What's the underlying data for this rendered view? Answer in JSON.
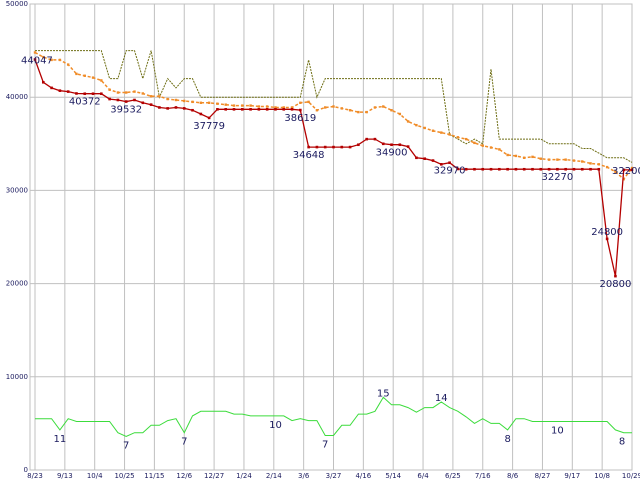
{
  "chart_data": {
    "type": "line",
    "title": "",
    "xlabel": "",
    "ylabel": "",
    "ylim": [
      0,
      50000
    ],
    "yticks": [
      0,
      10000,
      20000,
      30000,
      40000,
      50000
    ],
    "xticks": [
      "8/23",
      "9/13",
      "10/4",
      "10/25",
      "11/15",
      "12/6",
      "12/27",
      "1/24",
      "2/14",
      "3/6",
      "3/27",
      "4/16",
      "5/14",
      "6/4",
      "6/25",
      "7/16",
      "8/6",
      "8/27",
      "9/17",
      "10/8",
      "10/29"
    ],
    "grid": true,
    "legend": "none",
    "colors": {
      "price": "#b40000",
      "average": "#f08c28",
      "high": "#6e6e14",
      "count": "#3cdc3c",
      "grid": "#c0c0c0",
      "text": "#1a1a5e"
    },
    "series": [
      {
        "key": "high",
        "values": [
          45000,
          45000,
          45000,
          45000,
          45000,
          45000,
          45000,
          45000,
          45000,
          42000,
          42000,
          45000,
          45000,
          42000,
          45000,
          40000,
          42000,
          41000,
          42000,
          42000,
          40000,
          40000,
          40000,
          40000,
          40000,
          40000,
          40000,
          40000,
          40000,
          40000,
          40000,
          40000,
          40000,
          44000,
          40000,
          42000,
          42000,
          42000,
          42000,
          42000,
          42000,
          42000,
          42000,
          42000,
          42000,
          42000,
          42000,
          42000,
          42000,
          42000,
          36000,
          35500,
          35000,
          35500,
          35000,
          43000,
          35500,
          35500,
          35500,
          35500,
          35500,
          35500,
          35000,
          35000,
          35000,
          35000,
          34500,
          34500,
          34000,
          33500,
          33500,
          33500,
          33000
        ]
      },
      {
        "key": "average",
        "values": [
          44800,
          44300,
          44000,
          44000,
          43500,
          42500,
          42300,
          42100,
          41800,
          40800,
          40500,
          40500,
          40600,
          40400,
          40100,
          40100,
          39800,
          39700,
          39600,
          39500,
          39400,
          39400,
          39300,
          39200,
          39100,
          39100,
          39100,
          39000,
          39000,
          38900,
          38900,
          38900,
          39400,
          39500,
          38600,
          38900,
          39000,
          38800,
          38600,
          38400,
          38400,
          38900,
          39000,
          38600,
          38200,
          37400,
          37000,
          36700,
          36400,
          36200,
          36000,
          35700,
          35500,
          35100,
          34800,
          34600,
          34400,
          33800,
          33700,
          33500,
          33600,
          33400,
          33300,
          33300,
          33300,
          33200,
          33100,
          32900,
          32800,
          32500,
          32000,
          31200,
          32400
        ]
      },
      {
        "key": "price",
        "values": [
          44047,
          41600,
          41000,
          40700,
          40600,
          40400,
          40372,
          40372,
          40372,
          39800,
          39700,
          39532,
          39700,
          39400,
          39200,
          38900,
          38800,
          38900,
          38800,
          38600,
          38200,
          37779,
          38700,
          38700,
          38700,
          38700,
          38700,
          38700,
          38700,
          38700,
          38700,
          38700,
          38619,
          34648,
          34648,
          34648,
          34648,
          34648,
          34648,
          34900,
          35500,
          35500,
          35000,
          34900,
          34900,
          34700,
          33500,
          33400,
          33200,
          32800,
          32970,
          32300,
          32270,
          32270,
          32270,
          32270,
          32270,
          32270,
          32270,
          32270,
          32270,
          32270,
          32270,
          32270,
          32270,
          32270,
          32270,
          32270,
          32270,
          24800,
          20800,
          32200,
          32200
        ]
      },
      {
        "key": "count",
        "values": [
          5.5,
          5.5,
          5.5,
          4.3,
          5.5,
          5.2,
          5.2,
          5.2,
          5.2,
          5.2,
          4.0,
          3.6,
          4.0,
          4.0,
          4.8,
          4.8,
          5.3,
          5.5,
          4.0,
          5.8,
          6.3,
          6.3,
          6.3,
          6.3,
          6.0,
          6.0,
          5.8,
          5.8,
          5.8,
          5.8,
          5.8,
          5.3,
          5.5,
          5.3,
          5.3,
          3.7,
          3.7,
          4.8,
          4.8,
          6.0,
          6.0,
          6.3,
          7.8,
          7.0,
          7.0,
          6.7,
          6.2,
          6.7,
          6.7,
          7.3,
          6.7,
          6.3,
          5.7,
          5.0,
          5.5,
          5.0,
          5.0,
          4.3,
          5.5,
          5.5,
          5.2,
          5.2,
          5.2,
          5.2,
          5.2,
          5.2,
          5.2,
          5.2,
          5.2,
          5.2,
          4.3,
          4.0,
          4.0
        ]
      }
    ],
    "price_labels": [
      {
        "i": 0,
        "text": "44047"
      },
      {
        "i": 6,
        "text": "40372"
      },
      {
        "i": 11,
        "text": "39532"
      },
      {
        "i": 21,
        "text": "37779"
      },
      {
        "i": 32,
        "text": "38619"
      },
      {
        "i": 33,
        "text": "34648"
      },
      {
        "i": 43,
        "text": "34900"
      },
      {
        "i": 50,
        "text": "32970"
      },
      {
        "i": 63,
        "text": "32270"
      },
      {
        "i": 69,
        "text": "24800"
      },
      {
        "i": 70,
        "text": "20800"
      },
      {
        "i": 71,
        "text": "32200"
      }
    ],
    "count_labels": [
      {
        "i": 3,
        "text": "11"
      },
      {
        "i": 11,
        "text": "7"
      },
      {
        "i": 18,
        "text": "7"
      },
      {
        "i": 29,
        "text": "10"
      },
      {
        "i": 35,
        "text": "7"
      },
      {
        "i": 42,
        "text": "15"
      },
      {
        "i": 49,
        "text": "14"
      },
      {
        "i": 57,
        "text": "8"
      },
      {
        "i": 63,
        "text": "10"
      },
      {
        "i": 72,
        "text": "8"
      }
    ]
  }
}
